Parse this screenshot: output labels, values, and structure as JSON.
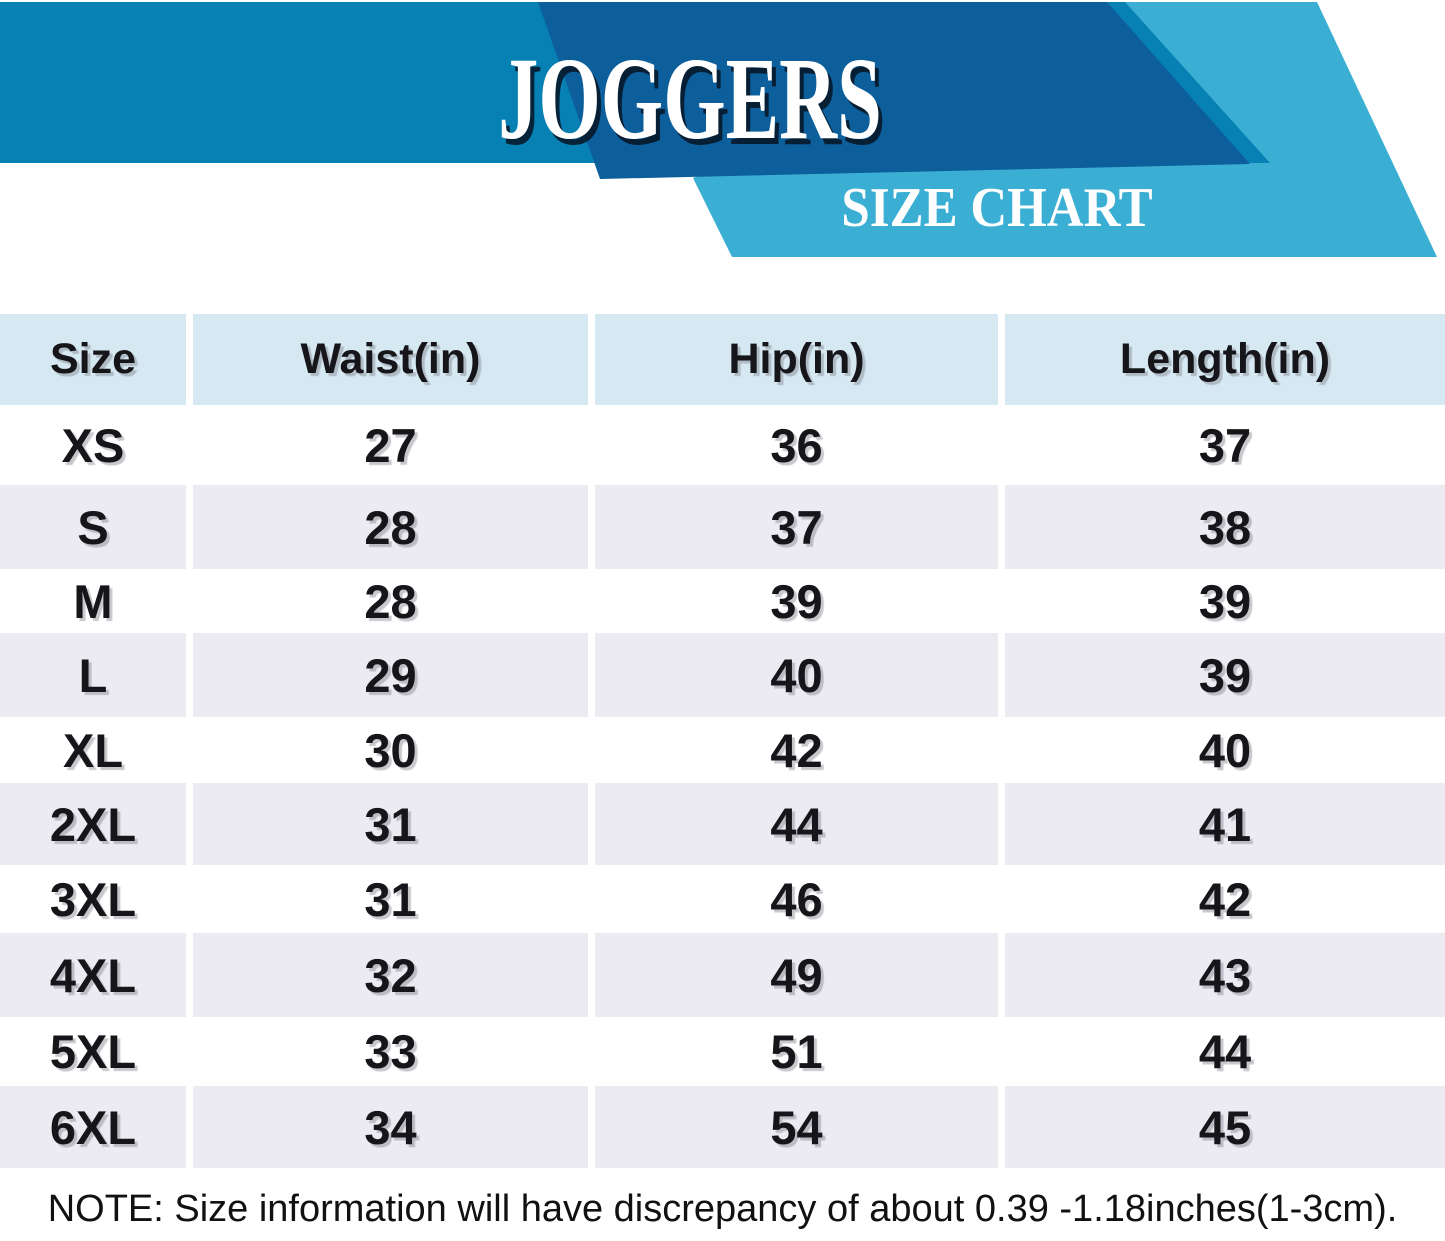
{
  "banner": {
    "title": "JOGGERS",
    "subtitle": "SIZE CHART"
  },
  "table": {
    "columns": [
      "Size",
      "Waist(in)",
      "Hip(in)",
      "Length(in)"
    ],
    "rows": [
      {
        "size": "XS",
        "waist": "27",
        "hip": "36",
        "length": "37"
      },
      {
        "size": "S",
        "waist": "28",
        "hip": "37",
        "length": "38"
      },
      {
        "size": "M",
        "waist": "28",
        "hip": "39",
        "length": "39"
      },
      {
        "size": "L",
        "waist": "29",
        "hip": "40",
        "length": "39"
      },
      {
        "size": "XL",
        "waist": "30",
        "hip": "42",
        "length": "40"
      },
      {
        "size": "2XL",
        "waist": "31",
        "hip": "44",
        "length": "41"
      },
      {
        "size": "3XL",
        "waist": "31",
        "hip": "46",
        "length": "42"
      },
      {
        "size": "4XL",
        "waist": "32",
        "hip": "49",
        "length": "43"
      },
      {
        "size": "5XL",
        "waist": "33",
        "hip": "51",
        "length": "44"
      },
      {
        "size": "6XL",
        "waist": "34",
        "hip": "54",
        "length": "45"
      }
    ]
  },
  "note": "NOTE: Size information will have discrepancy of about 0.39 -1.18inches(1-3cm).",
  "colors": {
    "banner_medium": "#0780B3",
    "banner_dark": "#0D5F9B",
    "banner_cyan": "#3BAFD3",
    "header_cell": "#D6E8F2",
    "row_alt": "#ECEBF1"
  }
}
